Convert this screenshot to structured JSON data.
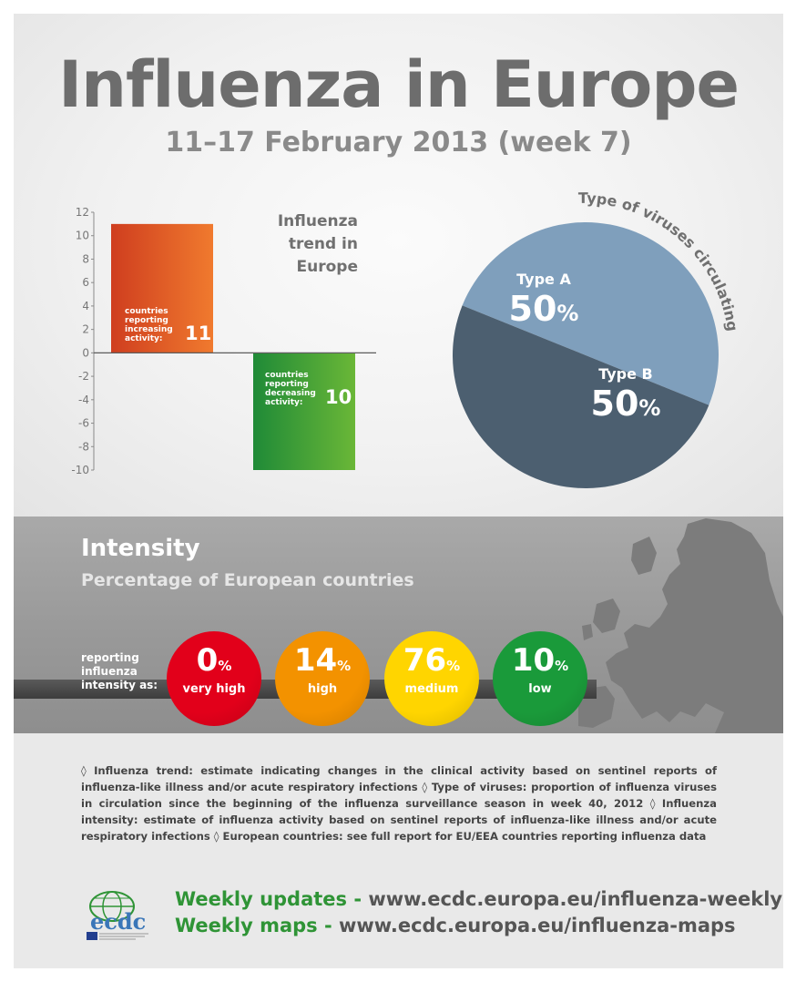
{
  "title": "Influenza in Europe",
  "subtitle": "11–17 February 2013 (week 7)",
  "trend": {
    "title_lines": [
      "Influenza",
      "trend in",
      "Europe"
    ],
    "increasing": {
      "label_lines": [
        "countries reporting",
        "increasing",
        "activity:"
      ],
      "value": "11"
    },
    "decreasing": {
      "label_lines": [
        "countries reporting",
        "decreasing",
        "activity:"
      ],
      "value": "10"
    }
  },
  "pie": {
    "title": "Type of viruses circulating",
    "type_a": {
      "name": "Type A",
      "value": "50",
      "unit": "%"
    },
    "type_b": {
      "name": "Type B",
      "value": "50",
      "unit": "%"
    }
  },
  "intensity": {
    "title": "Intensity",
    "subtitle": "Percentage of European countries",
    "caption_lines": [
      "reporting",
      "influenza",
      "intensity as:"
    ],
    "levels": [
      {
        "pct": "0",
        "unit": "%",
        "label": "very high",
        "color": "#e2001a"
      },
      {
        "pct": "14",
        "unit": "%",
        "label": "high",
        "color": "#f39200"
      },
      {
        "pct": "76",
        "unit": "%",
        "label": "medium",
        "color": "#ffd500"
      },
      {
        "pct": "10",
        "unit": "%",
        "label": "low",
        "color": "#1a9a3a"
      }
    ]
  },
  "notes": "◊ Influenza trend: estimate indicating changes in the clinical activity based on sentinel reports of influenza-like illness and/or acute respiratory infections ◊ Type of viruses: proportion of influenza viruses in circulation since the beginning of the influenza surveillance season in week 40, 2012 ◊ Influenza intensity: estimate of influenza activity based on sentinel reports of influenza-like illness and/or acute respiratory infections ◊ European countries: see full report for EU/EEA countries reporting influenza data",
  "footer": {
    "logo_text": "ecdc",
    "links": [
      {
        "label": "Weekly updates - ",
        "url": "www.ecdc.europa.eu/influenza-weekly"
      },
      {
        "label": "Weekly maps - ",
        "url": "www.ecdc.europa.eu/influenza-maps"
      }
    ]
  },
  "chart_data": [
    {
      "type": "bar",
      "categories": [
        "increasing activity",
        "decreasing activity"
      ],
      "values": [
        11,
        -10
      ],
      "ylim": [
        -10,
        12
      ],
      "yticks": [
        12,
        10,
        8,
        6,
        4,
        2,
        0,
        -2,
        -4,
        -6,
        -8,
        -10
      ],
      "colors": [
        "#e8592a",
        "#3c9d3a"
      ]
    },
    {
      "type": "pie",
      "title": "Type of viruses circulating",
      "labels": [
        "Type A",
        "Type B"
      ],
      "values": [
        50,
        50
      ],
      "colors": [
        "#7f9fbc",
        "#4c5f70"
      ]
    }
  ]
}
